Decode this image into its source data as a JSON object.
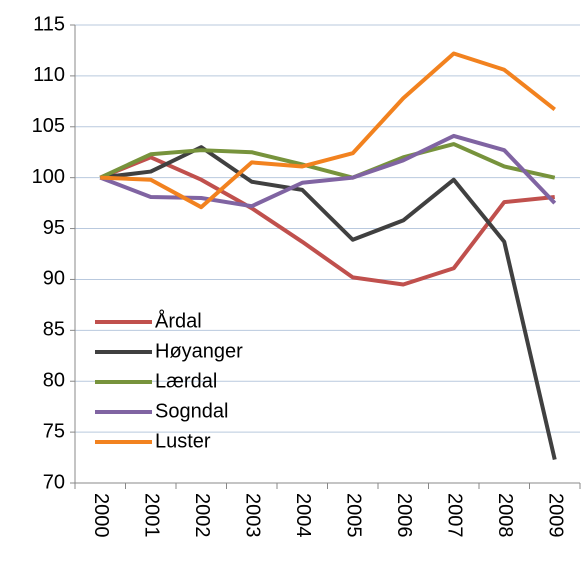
{
  "chart_data": {
    "type": "line",
    "categories": [
      "2000",
      "2001",
      "2002",
      "2003",
      "2004",
      "2005",
      "2006",
      "2007",
      "2008",
      "2009"
    ],
    "series": [
      {
        "name": "Årdal",
        "color": "#c0504d",
        "values": [
          100,
          102,
          99.8,
          97,
          93.7,
          90.2,
          89.5,
          91.1,
          97.6,
          98.1
        ]
      },
      {
        "name": "Høyanger",
        "color": "#404040",
        "values": [
          100,
          100.6,
          103,
          99.6,
          98.8,
          93.9,
          95.8,
          99.8,
          93.7,
          72.3
        ]
      },
      {
        "name": "Lærdal",
        "color": "#77933c",
        "values": [
          100,
          102.3,
          102.7,
          102.5,
          101.3,
          100,
          102,
          103.3,
          101.1,
          100
        ]
      },
      {
        "name": "Sogndal",
        "color": "#8064a2",
        "values": [
          100,
          98.1,
          98,
          97.2,
          99.5,
          100,
          101.7,
          104.1,
          102.7,
          97.5
        ]
      },
      {
        "name": "Luster",
        "color": "#f2821f",
        "values": [
          100,
          99.8,
          97.1,
          101.5,
          101.1,
          102.4,
          107.8,
          112.2,
          110.6,
          106.7
        ]
      }
    ],
    "ylim": [
      70,
      115
    ],
    "yticks": [
      70,
      75,
      80,
      85,
      90,
      95,
      100,
      105,
      110,
      115
    ],
    "grid": true,
    "legend": "lower left"
  }
}
